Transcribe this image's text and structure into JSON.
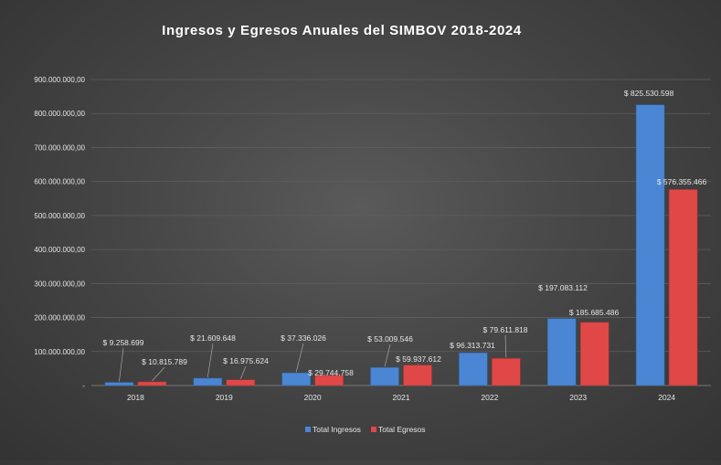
{
  "chart_data": {
    "type": "bar",
    "title": "Ingresos y Egresos Anuales del SIMBOV 2018-2024",
    "xlabel": "",
    "ylabel": "",
    "categories": [
      "2018",
      "2019",
      "2020",
      "2021",
      "2022",
      "2023",
      "2024"
    ],
    "series": [
      {
        "name": "Total Ingresos",
        "color": "#4a86d4",
        "values": [
          9258699,
          21609648,
          37336026,
          53009546,
          96313731,
          197083112,
          825530598
        ],
        "labels": [
          "$ 9.258.699",
          "$ 21.609.648",
          "$ 37.336.026",
          "$ 53.009.546",
          "$ 96.313.731",
          "$ 197.083.112",
          "$ 825.530.598"
        ]
      },
      {
        "name": "Total Egresos",
        "color": "#e04848",
        "values": [
          10815789,
          16975624,
          29744758,
          59937612,
          79611818,
          185685486,
          576355466
        ],
        "labels": [
          "$ 10.815.789",
          "$ 16.975.624",
          "$ 29.744.758",
          "$ 59.937.612",
          "$ 79.611.818",
          "$ 185.685.486",
          "$ 576.355.466"
        ]
      }
    ],
    "ylim": [
      0,
      900000000
    ],
    "yticks": [
      0,
      100000000,
      200000000,
      300000000,
      400000000,
      500000000,
      600000000,
      700000000,
      800000000,
      900000000
    ],
    "ytick_labels": [
      "-",
      "100.000.000,00",
      "200.000.000,00",
      "300.000.000,00",
      "400.000.000,00",
      "500.000.000,00",
      "600.000.000,00",
      "700.000.000,00",
      "800.000.000,00",
      "900.000.000,00"
    ],
    "grid": true,
    "legend_position": "bottom"
  }
}
